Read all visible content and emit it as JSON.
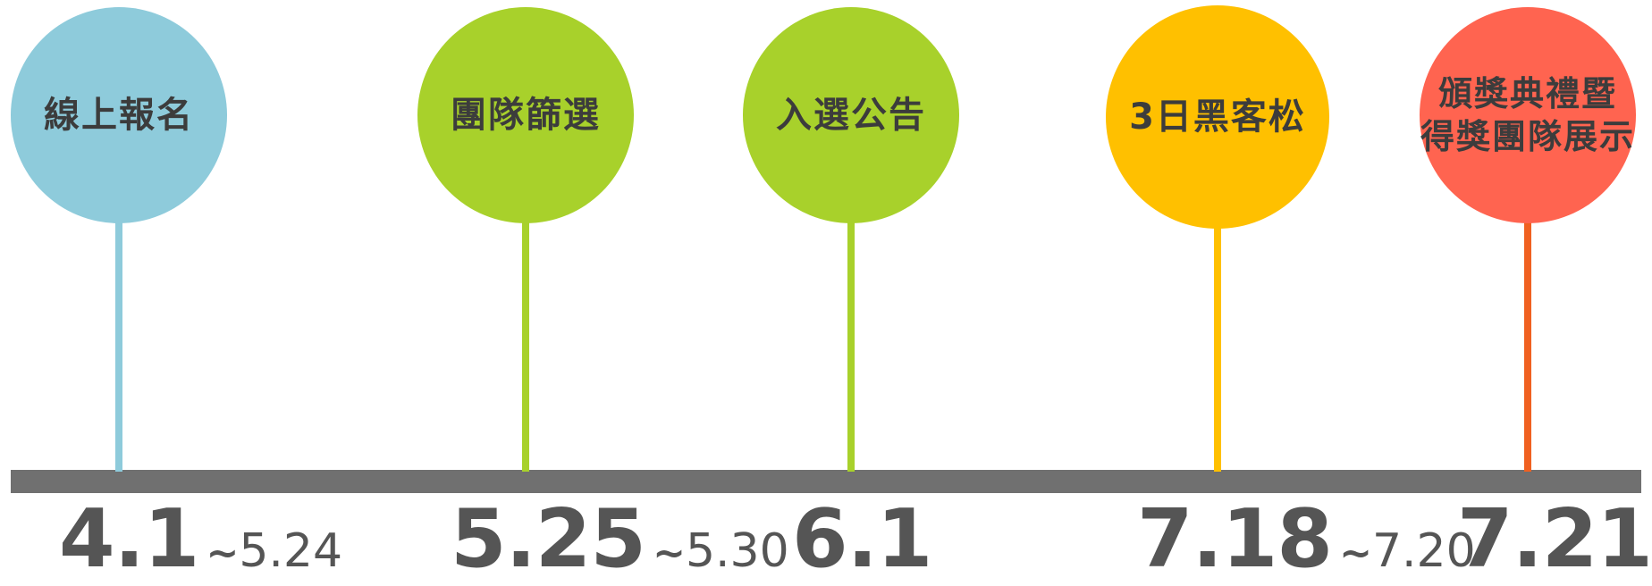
{
  "milestones": [
    {
      "label": "線上報名",
      "start": "4.1",
      "tilde": "~",
      "end": "5.24",
      "color": "#8ecbdb"
    },
    {
      "label": "團隊篩選",
      "start": "5.25",
      "tilde": "~",
      "end": "5.30",
      "color": "#a8d12b"
    },
    {
      "label": "入選公告",
      "start": "6.1",
      "color": "#a8d12b"
    },
    {
      "label": "3日黑客松",
      "start": "7.18",
      "tilde": "~",
      "end": "7.20",
      "color": "#ffc000"
    },
    {
      "label_line1": "頒獎典禮暨",
      "label_line2": "得獎團隊展示",
      "start": "7.21",
      "color": "#ff6450",
      "stem_color": "#f06020"
    }
  ],
  "colors": {
    "timeline_bar": "#707070",
    "circle_text": "#3c3c3c",
    "date_text": "#555555"
  }
}
